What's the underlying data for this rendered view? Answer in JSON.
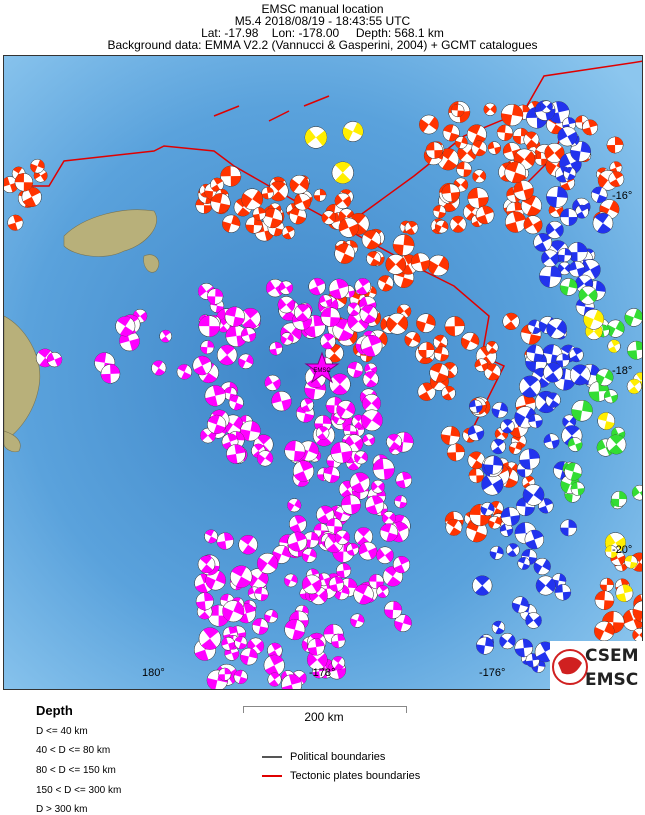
{
  "header": {
    "title": "EMSC manual location",
    "event": "M5.4  2018/08/19 - 18:43:55 UTC",
    "location": "Lat: -17.98    Lon: -178.00     Depth: 568.1 km",
    "background": "Background data: EMMA V2.2 (Vannucci & Gasperini, 2004) + GCMT catalogues"
  },
  "map": {
    "lat_labels": [
      "-16°",
      "-18°",
      "-20°"
    ],
    "lon_labels": [
      "180°",
      "-178°",
      "-176°"
    ],
    "epicenter_label": "EMSC",
    "depth_colors": {
      "d40": "#ff3300",
      "d80": "#ffee00",
      "d150": "#33dd33",
      "d300": "#2233ee",
      "deep": "#ff00ff"
    },
    "ocean_color": "#5a9ed8",
    "tectonic_color": "#e00000"
  },
  "legend": {
    "title": "Depth",
    "items": [
      "D <= 40 km",
      "40 < D <= 80 km",
      "80 < D <= 150 km",
      "150 < D <= 300 km",
      "D > 300 km"
    ],
    "scale": "200 km",
    "political": "Political boundaries",
    "tectonic": "Tectonic plates boundaries"
  },
  "logo": {
    "line1": "CSEM",
    "line2": "EMSC"
  }
}
